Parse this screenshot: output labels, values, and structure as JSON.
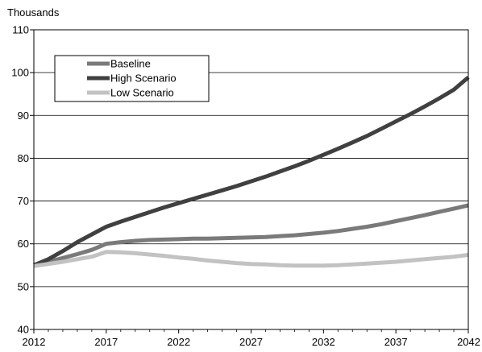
{
  "chart_data": {
    "type": "line",
    "ylabel": "Thousands",
    "xlim": [
      2012,
      2042
    ],
    "ylim": [
      40,
      110
    ],
    "x_ticks": [
      2012,
      2017,
      2022,
      2027,
      2032,
      2037,
      2042
    ],
    "y_ticks": [
      40,
      50,
      60,
      70,
      80,
      90,
      100,
      110
    ],
    "grid": "horizontal",
    "legend_position": "top-left",
    "x": [
      2012,
      2013,
      2014,
      2015,
      2016,
      2017,
      2018,
      2019,
      2020,
      2021,
      2022,
      2023,
      2024,
      2025,
      2026,
      2027,
      2028,
      2029,
      2030,
      2031,
      2032,
      2033,
      2034,
      2035,
      2036,
      2037,
      2038,
      2039,
      2040,
      2041,
      2042
    ],
    "series": [
      {
        "name": "Baseline",
        "color": "#7a7a7a",
        "values": [
          55.0,
          55.8,
          56.7,
          57.6,
          58.6,
          60.0,
          60.4,
          60.7,
          60.9,
          61.0,
          61.1,
          61.2,
          61.2,
          61.3,
          61.4,
          61.5,
          61.6,
          61.8,
          62.0,
          62.3,
          62.6,
          63.0,
          63.5,
          64.0,
          64.6,
          65.3,
          66.0,
          66.7,
          67.5,
          68.2,
          69.0
        ]
      },
      {
        "name": "High Scenario",
        "color": "#404040",
        "values": [
          55.0,
          56.4,
          58.3,
          60.4,
          62.2,
          64.0,
          65.2,
          66.3,
          67.4,
          68.5,
          69.5,
          70.5,
          71.5,
          72.5,
          73.5,
          74.6,
          75.7,
          76.9,
          78.1,
          79.4,
          80.8,
          82.2,
          83.7,
          85.2,
          86.9,
          88.6,
          90.3,
          92.1,
          94.0,
          96.0,
          98.9
        ]
      },
      {
        "name": "Low Scenario",
        "color": "#c2c2c2",
        "values": [
          54.8,
          55.3,
          55.8,
          56.4,
          57.0,
          58.1,
          58.0,
          57.8,
          57.5,
          57.2,
          56.8,
          56.5,
          56.1,
          55.8,
          55.5,
          55.3,
          55.2,
          55.0,
          54.9,
          54.9,
          54.9,
          55.0,
          55.2,
          55.4,
          55.6,
          55.8,
          56.1,
          56.4,
          56.7,
          57.0,
          57.4
        ]
      }
    ]
  }
}
